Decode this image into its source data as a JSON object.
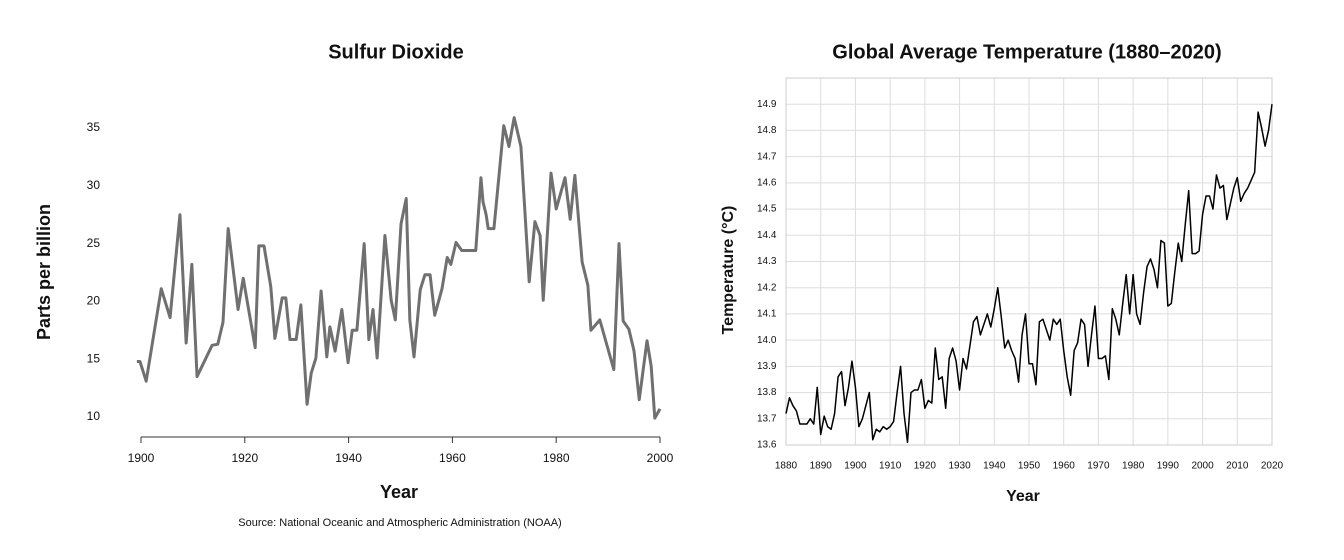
{
  "chart_data": [
    {
      "type": "line",
      "title": "Sulfur Dioxide",
      "xlabel": "Year",
      "ylabel": "Parts per billion",
      "source": "Source: National Oceanic and Atmospheric Administration (NOAA)",
      "x": [
        1899.2,
        1899.8,
        1901,
        1903.9,
        1905.6,
        1907.5,
        1908.7,
        1909.8,
        1910.8,
        1913.7,
        1914.8,
        1915.8,
        1916.8,
        1918.7,
        1919.7,
        1922,
        1922.7,
        1923.7,
        1925,
        1925.8,
        1927.2,
        1927.9,
        1928.7,
        1929.9,
        1930.8,
        1932,
        1932.8,
        1933.7,
        1934.7,
        1935.8,
        1936.4,
        1937.4,
        1938.7,
        1939.9,
        1940.7,
        1941.6,
        1943,
        1943.9,
        1944.7,
        1945.5,
        1947,
        1948.2,
        1949,
        1950.1,
        1951.1,
        1951.8,
        1952.6,
        1953.8,
        1954.7,
        1955.7,
        1956.6,
        1958,
        1959,
        1959.7,
        1960.7,
        1961.8,
        1963.2,
        1964.5,
        1965.5,
        1965.9,
        1966.5,
        1966.9,
        1968,
        1969.9,
        1970.9,
        1971.9,
        1973.2,
        1974.8,
        1975.9,
        1976.9,
        1977.5,
        1978.2,
        1979,
        1980,
        1981.7,
        1982.7,
        1983.6,
        1985,
        1986.1,
        1986.7,
        1988.4,
        1991.1,
        1992.1,
        1992.9,
        1994,
        1995,
        1996,
        1997.5,
        1998.3,
        1999,
        2000
      ],
      "series": [
        {
          "name": "Sulfur Dioxide",
          "color": "#707070",
          "values": [
            14.8,
            14.8,
            13.1,
            21.1,
            18.6,
            27.5,
            16.4,
            23.2,
            13.5,
            16.2,
            16.3,
            18.2,
            26.3,
            19.3,
            22,
            16,
            24.8,
            24.8,
            21.3,
            16.8,
            20.3,
            20.3,
            16.7,
            16.7,
            19.7,
            11.1,
            13.8,
            15.1,
            20.9,
            15.2,
            17.8,
            15.7,
            19.3,
            14.7,
            17.5,
            17.5,
            25,
            16.7,
            19.3,
            15.1,
            25.7,
            20.1,
            18.4,
            26.7,
            28.9,
            18.4,
            15.2,
            21,
            22.3,
            22.3,
            18.8,
            21.1,
            23.8,
            23.2,
            25.1,
            24.4,
            24.4,
            24.4,
            30.7,
            28.6,
            27.5,
            26.3,
            26.3,
            35.2,
            33.4,
            35.9,
            33.4,
            21.7,
            26.9,
            25.7,
            20.1,
            25.1,
            31.1,
            28,
            30.7,
            27.1,
            30.9,
            23.4,
            21.4,
            17.5,
            18.4,
            14.1,
            25,
            18.3,
            17.6,
            15.7,
            11.5,
            16.6,
            14.4,
            9.9,
            10.7
          ]
        }
      ],
      "xlim": [
        1900,
        2000
      ],
      "xticks": [
        1900,
        1920,
        1940,
        1960,
        1980,
        2000
      ],
      "ylim": [
        10,
        35
      ],
      "yticks": [
        10,
        15,
        20,
        25,
        30,
        35
      ],
      "grid": false
    },
    {
      "type": "line",
      "title": "Global Average Temperature (1880–2020)",
      "xlabel": "Year",
      "ylabel": "Temperature  (°C)",
      "x": [
        1880,
        1881,
        1882,
        1883,
        1884,
        1885,
        1886,
        1887,
        1888,
        1889,
        1890,
        1891,
        1892,
        1893,
        1894,
        1895,
        1896,
        1897,
        1898,
        1899,
        1900,
        1901,
        1902,
        1903,
        1904,
        1905,
        1906,
        1907,
        1908,
        1909,
        1910,
        1911,
        1912,
        1913,
        1914,
        1915,
        1916,
        1917,
        1918,
        1919,
        1920,
        1921,
        1922,
        1923,
        1924,
        1925,
        1926,
        1927,
        1928,
        1929,
        1930,
        1931,
        1932,
        1933,
        1934,
        1935,
        1936,
        1937,
        1938,
        1939,
        1940,
        1941,
        1942,
        1943,
        1944,
        1945,
        1946,
        1947,
        1948,
        1949,
        1950,
        1951,
        1952,
        1953,
        1954,
        1955,
        1956,
        1957,
        1958,
        1959,
        1960,
        1961,
        1962,
        1963,
        1964,
        1965,
        1966,
        1967,
        1968,
        1969,
        1970,
        1971,
        1972,
        1973,
        1974,
        1975,
        1976,
        1977,
        1978,
        1979,
        1980,
        1981,
        1982,
        1983,
        1984,
        1985,
        1986,
        1987,
        1988,
        1989,
        1990,
        1991,
        1992,
        1993,
        1994,
        1995,
        1996,
        1997,
        1998,
        1999,
        2000,
        2001,
        2002,
        2003,
        2004,
        2005,
        2006,
        2007,
        2008,
        2009,
        2010,
        2011,
        2012,
        2013,
        2014,
        2015,
        2016,
        2017,
        2018,
        2019,
        2020
      ],
      "series": [
        {
          "name": "Temperature",
          "color": "#000000",
          "values": [
            13.72,
            13.78,
            13.75,
            13.73,
            13.68,
            13.68,
            13.68,
            13.7,
            13.68,
            13.82,
            13.64,
            13.71,
            13.67,
            13.66,
            13.72,
            13.86,
            13.88,
            13.75,
            13.82,
            13.92,
            13.82,
            13.67,
            13.7,
            13.75,
            13.8,
            13.62,
            13.66,
            13.65,
            13.67,
            13.66,
            13.67,
            13.69,
            13.8,
            13.9,
            13.72,
            13.61,
            13.8,
            13.81,
            13.81,
            13.85,
            13.74,
            13.77,
            13.76,
            13.97,
            13.85,
            13.86,
            13.74,
            13.93,
            13.97,
            13.92,
            13.81,
            13.93,
            13.89,
            13.98,
            14.07,
            14.09,
            14.02,
            14.06,
            14.1,
            14.05,
            14.12,
            14.2,
            14.09,
            13.97,
            14,
            13.96,
            13.93,
            13.84,
            14.02,
            14.1,
            13.91,
            13.91,
            13.83,
            14.07,
            14.08,
            14.04,
            14,
            14.08,
            14.06,
            14.08,
            13.96,
            13.86,
            13.79,
            13.96,
            13.99,
            14.08,
            14.06,
            13.9,
            14.02,
            14.13,
            13.93,
            13.93,
            13.94,
            13.85,
            14.12,
            14.08,
            14.02,
            14.14,
            14.25,
            14.1,
            14.25,
            14.1,
            14.06,
            14.18,
            14.28,
            14.31,
            14.27,
            14.2,
            14.38,
            14.37,
            14.13,
            14.14,
            14.26,
            14.37,
            14.3,
            14.44,
            14.57,
            14.33,
            14.33,
            14.34,
            14.48,
            14.55,
            14.55,
            14.5,
            14.63,
            14.58,
            14.59,
            14.46,
            14.52,
            14.58,
            14.62,
            14.53,
            14.56,
            14.58,
            14.61,
            14.64,
            14.87,
            14.81,
            14.74,
            14.8,
            14.9
          ]
        }
      ],
      "xlim": [
        1880,
        2020
      ],
      "xticks": [
        1880,
        1890,
        1900,
        1910,
        1920,
        1930,
        1940,
        1950,
        1960,
        1970,
        1980,
        1990,
        2000,
        2010,
        2020
      ],
      "ylim": [
        13.6,
        15.0
      ],
      "yticks": [
        13.6,
        13.7,
        13.8,
        13.9,
        {
          "value": 14,
          "label": "14.0"
        },
        14.1,
        14.2,
        14.3,
        14.4,
        14.5,
        14.6,
        14.7,
        14.8,
        14.9
      ],
      "grid": true
    }
  ]
}
